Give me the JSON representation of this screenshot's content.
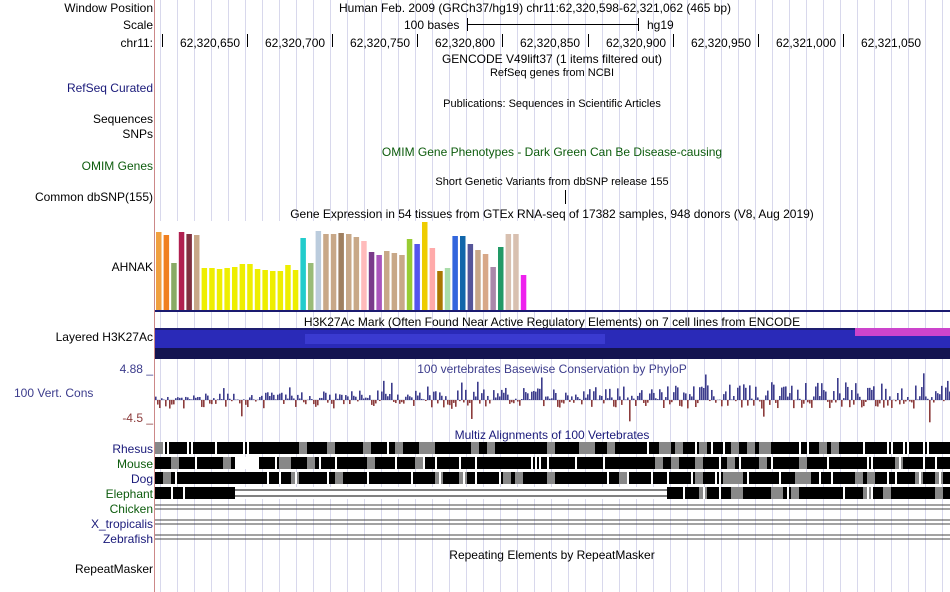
{
  "header": {
    "window_position_label": "Window Position",
    "window_position_text": "Human Feb. 2009 (GRCh37/hg19)   chr11:62,320,598-62,321,062 (465 bp)",
    "scale_label": "Scale",
    "scale_bar_text": "100 bases",
    "scale_assembly": "hg19",
    "chrom_label": "chr11:",
    "coordinates": [
      "62,320,650",
      "62,320,700",
      "62,320,750",
      "62,320,800",
      "62,320,850",
      "62,320,900",
      "62,320,950",
      "62,321,000",
      "62,321,050"
    ]
  },
  "tracks": {
    "gencode_title": "GENCODE V49lift37 (1 items filtered out)",
    "refseq_title": "RefSeq genes from NCBI",
    "refseq_label": "RefSeq Curated",
    "publications_title": "Publications: Sequences in Scientific Articles",
    "sequences_label": "Sequences",
    "snps_label": "SNPs",
    "omim_title": "OMIM Gene Phenotypes - Dark Green Can Be Disease-causing",
    "omim_label": "OMIM Genes",
    "dbsnp_title": "Short Genetic Variants from dbSNP release 155",
    "dbsnp_label": "Common dbSNP(155)",
    "gtex_title": "Gene Expression in 54 tissues from GTEx RNA-seq of 17382 samples, 948 donors (V8, Aug 2019)",
    "gtex_label": "AHNAK",
    "h3k27ac_title": "H3K27Ac Mark (Often Found Near Active Regulatory Elements) on 7 cell lines from ENCODE",
    "h3k27ac_label": "Layered H3K27Ac",
    "cons_title": "100 vertebrates Basewise Conservation by PhyloP",
    "cons_label": "100 Vert. Cons",
    "cons_max": "4.88 _",
    "cons_min": "-4.5 _",
    "multiz_title": "Multiz Alignments of 100 Vertebrates",
    "species": [
      "Rhesus",
      "Mouse",
      "Dog",
      "Elephant",
      "Chicken",
      "X_tropicalis",
      "Zebrafish"
    ],
    "repeat_title": "Repeating Elements by RepeatMasker",
    "repeat_label": "RepeatMasker"
  },
  "colors": {
    "refseq_label": "#1a1a7a",
    "omim": "#0d5c0d",
    "conservation_pos": "#3c3c8c",
    "conservation_neg": "#8c3c3c",
    "h3k27ac": "#2a2aa0"
  },
  "gtex_bars": [
    {
      "v": 78,
      "c": "#f0a040"
    },
    {
      "v": 75,
      "c": "#f08020"
    },
    {
      "v": 47,
      "c": "#88aa66"
    },
    {
      "v": 78,
      "c": "#b02050"
    },
    {
      "v": 76,
      "c": "#803040"
    },
    {
      "v": 75,
      "c": "#c8a888"
    },
    {
      "v": 42,
      "c": "#eeee00"
    },
    {
      "v": 42,
      "c": "#eeee00"
    },
    {
      "v": 41,
      "c": "#eeee00"
    },
    {
      "v": 42,
      "c": "#eeee00"
    },
    {
      "v": 43,
      "c": "#eeee00"
    },
    {
      "v": 46,
      "c": "#eeee00"
    },
    {
      "v": 46,
      "c": "#eeee00"
    },
    {
      "v": 41,
      "c": "#eeee00"
    },
    {
      "v": 40,
      "c": "#eeee00"
    },
    {
      "v": 39,
      "c": "#eeee00"
    },
    {
      "v": 39,
      "c": "#eeee00"
    },
    {
      "v": 45,
      "c": "#eeee00"
    },
    {
      "v": 40,
      "c": "#eeee00"
    },
    {
      "v": 72,
      "c": "#22cccc"
    },
    {
      "v": 47,
      "c": "#99bb77"
    },
    {
      "v": 79,
      "c": "#bbccdd"
    },
    {
      "v": 76,
      "c": "#c8a888"
    },
    {
      "v": 76,
      "c": "#c8a888"
    },
    {
      "v": 77,
      "c": "#a08060"
    },
    {
      "v": 76,
      "c": "#c8a888"
    },
    {
      "v": 73,
      "c": "#c8a888"
    },
    {
      "v": 69,
      "c": "#ffbbbb"
    },
    {
      "v": 58,
      "c": "#7a3a8a"
    },
    {
      "v": 55,
      "c": "#aa55bb"
    },
    {
      "v": 59,
      "c": "#c8a888"
    },
    {
      "v": 57,
      "c": "#c8a888"
    },
    {
      "v": 55,
      "c": "#c8a888"
    },
    {
      "v": 71,
      "c": "#99cc33"
    },
    {
      "v": 66,
      "c": "#5555ee"
    },
    {
      "v": 88,
      "c": "#eecc00"
    },
    {
      "v": 62,
      "c": "#ffaaaa"
    },
    {
      "v": 39,
      "c": "#aa7700"
    },
    {
      "v": 42,
      "c": "#aaddaa"
    },
    {
      "v": 74,
      "c": "#3366dd"
    },
    {
      "v": 74,
      "c": "#1166aa"
    },
    {
      "v": 66,
      "c": "#555599"
    },
    {
      "v": 60,
      "c": "#c8a888"
    },
    {
      "v": 56,
      "c": "#d8a888"
    },
    {
      "v": 43,
      "c": "#aa88aa"
    },
    {
      "v": 63,
      "c": "#229966"
    },
    {
      "v": 76,
      "c": "#d8c0b0"
    },
    {
      "v": 76,
      "c": "#d8c0b0"
    },
    {
      "v": 35,
      "c": "#ee22ee"
    }
  ]
}
